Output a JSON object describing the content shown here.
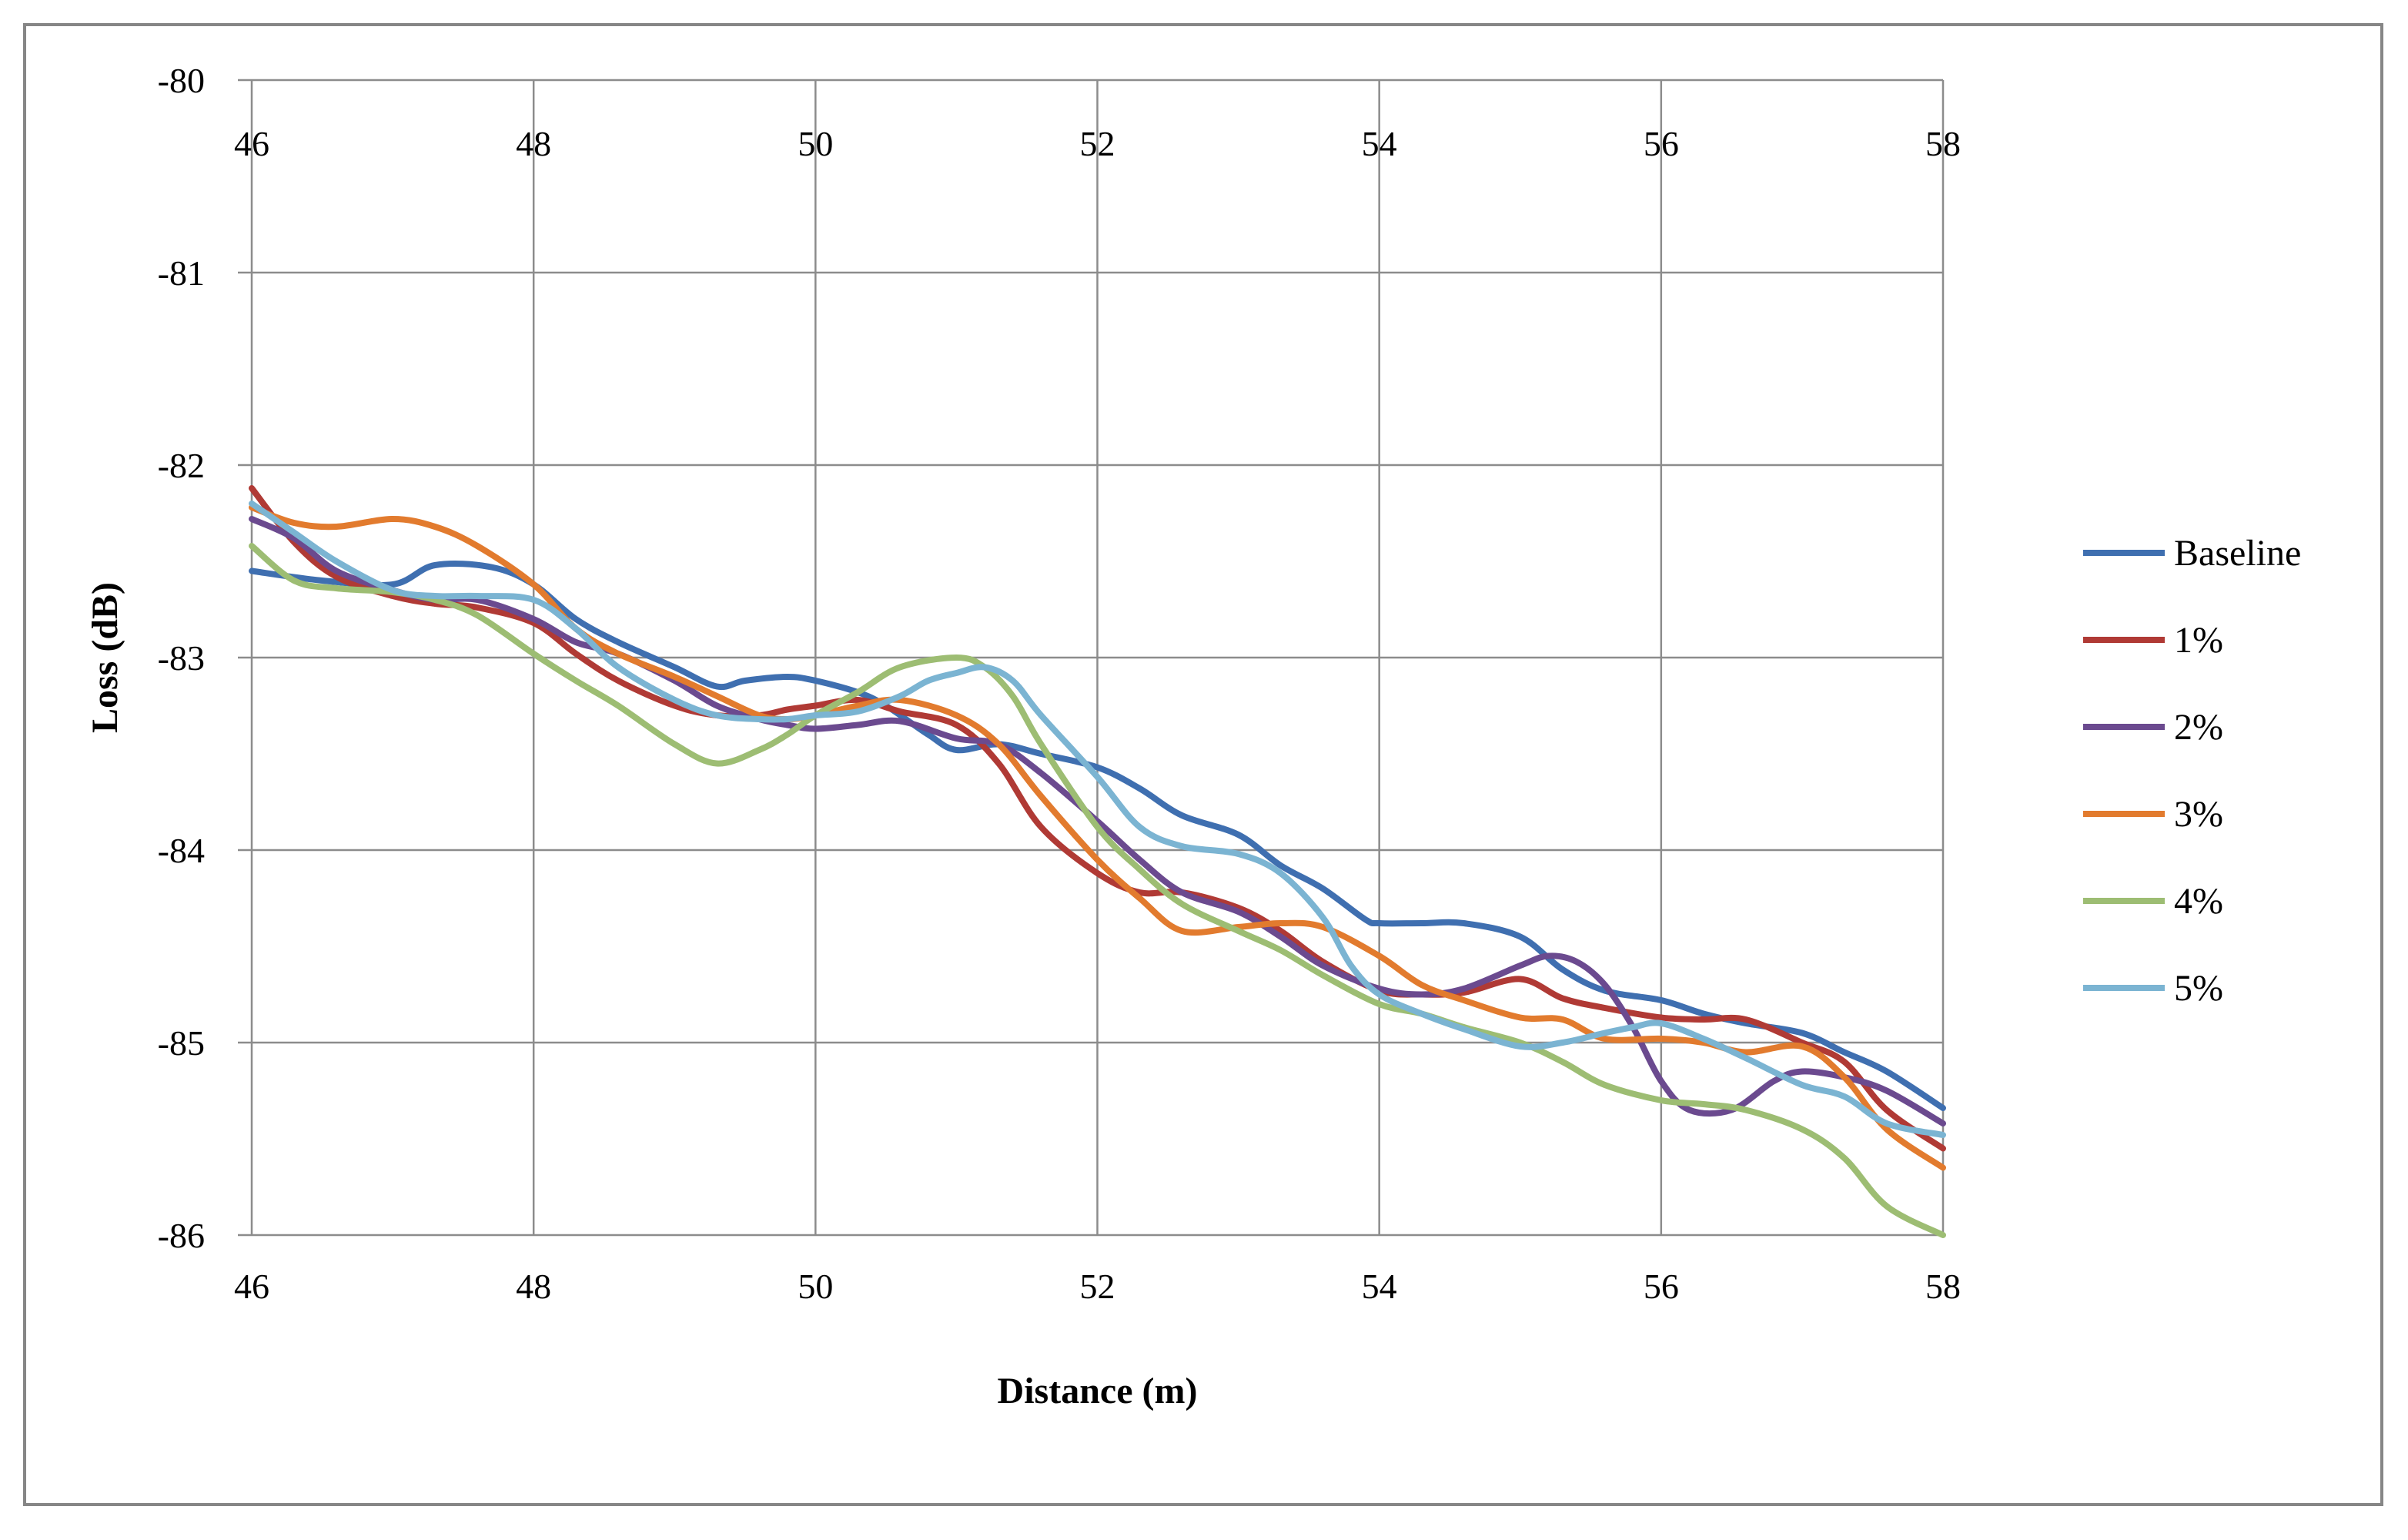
{
  "chart_data": {
    "type": "line",
    "title": "",
    "xlabel": "Distance (m)",
    "ylabel": "Loss (dB)",
    "xlim": [
      46,
      58
    ],
    "ylim": [
      -86,
      -80
    ],
    "xticks": [
      "46",
      "48",
      "50",
      "52",
      "54",
      "56",
      "58"
    ],
    "yticks": [
      "-80",
      "-81",
      "-82",
      "-83",
      "-84",
      "-85",
      "-86"
    ],
    "xtick_values": [
      46,
      48,
      50,
      52,
      54,
      56,
      58
    ],
    "ytick_values": [
      -80,
      -81,
      -82,
      -83,
      -84,
      -85,
      -86
    ],
    "grid": true,
    "legend_position": "right",
    "series": [
      {
        "name": "Baseline",
        "color": "#3F6FB0",
        "x": [
          46,
          46.5,
          47,
          47.3,
          47.7,
          48,
          48.3,
          48.6,
          49,
          49.3,
          49.5,
          49.8,
          50,
          50.3,
          50.5,
          50.8,
          51,
          51.3,
          51.6,
          52,
          52.3,
          52.6,
          53,
          53.3,
          53.6,
          53.9,
          54,
          54.3,
          54.6,
          55,
          55.3,
          55.6,
          56,
          56.3,
          56.6,
          57,
          57.3,
          57.6,
          58
        ],
        "y": [
          -82.55,
          -82.6,
          -82.62,
          -82.52,
          -82.53,
          -82.62,
          -82.8,
          -82.92,
          -83.05,
          -83.15,
          -83.12,
          -83.1,
          -83.12,
          -83.18,
          -83.25,
          -83.4,
          -83.48,
          -83.45,
          -83.5,
          -83.57,
          -83.68,
          -83.82,
          -83.92,
          -84.08,
          -84.2,
          -84.36,
          -84.38,
          -84.38,
          -84.38,
          -84.45,
          -84.62,
          -84.73,
          -84.78,
          -84.85,
          -84.9,
          -84.95,
          -85.05,
          -85.15,
          -85.34
        ]
      },
      {
        "name": "1%",
        "color": "#B03A35",
        "x": [
          46,
          46.3,
          46.6,
          47,
          47.3,
          47.6,
          48,
          48.3,
          48.6,
          49,
          49.3,
          49.6,
          49.8,
          50,
          50.3,
          50.6,
          51,
          51.3,
          51.6,
          52,
          52.3,
          52.6,
          53,
          53.3,
          53.6,
          54,
          54.3,
          54.6,
          55,
          55.3,
          55.6,
          56,
          56.3,
          56.6,
          57,
          57.3,
          57.6,
          58
        ],
        "y": [
          -82.12,
          -82.4,
          -82.58,
          -82.68,
          -82.72,
          -82.74,
          -82.82,
          -82.98,
          -83.12,
          -83.25,
          -83.3,
          -83.3,
          -83.27,
          -83.25,
          -83.22,
          -83.28,
          -83.35,
          -83.55,
          -83.88,
          -84.12,
          -84.22,
          -84.22,
          -84.3,
          -84.42,
          -84.58,
          -84.73,
          -84.75,
          -84.74,
          -84.67,
          -84.77,
          -84.82,
          -84.87,
          -84.88,
          -84.88,
          -85.0,
          -85.1,
          -85.35,
          -85.55
        ]
      },
      {
        "name": "2%",
        "color": "#6B4A8F",
        "x": [
          46,
          46.3,
          46.6,
          47,
          47.3,
          47.6,
          48,
          48.3,
          48.6,
          49,
          49.3,
          49.6,
          49.8,
          50,
          50.3,
          50.6,
          51,
          51.3,
          51.6,
          52,
          52.3,
          52.6,
          53,
          53.3,
          53.6,
          54,
          54.3,
          54.6,
          55,
          55.2,
          55.4,
          55.6,
          55.8,
          56,
          56.2,
          56.5,
          56.8,
          57,
          57.3,
          57.6,
          58
        ],
        "y": [
          -82.28,
          -82.38,
          -82.55,
          -82.65,
          -82.7,
          -82.7,
          -82.8,
          -82.92,
          -82.98,
          -83.12,
          -83.25,
          -83.32,
          -83.35,
          -83.37,
          -83.35,
          -83.33,
          -83.42,
          -83.45,
          -83.6,
          -83.85,
          -84.05,
          -84.22,
          -84.32,
          -84.45,
          -84.6,
          -84.72,
          -84.75,
          -84.72,
          -84.6,
          -84.55,
          -84.58,
          -84.7,
          -84.92,
          -85.2,
          -85.35,
          -85.35,
          -85.2,
          -85.15,
          -85.18,
          -85.25,
          -85.42
        ]
      },
      {
        "name": "3%",
        "color": "#E27B2E",
        "x": [
          46,
          46.3,
          46.6,
          47,
          47.3,
          47.6,
          48,
          48.3,
          48.6,
          49,
          49.3,
          49.6,
          49.8,
          50,
          50.3,
          50.6,
          51,
          51.3,
          51.6,
          52,
          52.3,
          52.6,
          53,
          53.3,
          53.6,
          54,
          54.3,
          54.6,
          55,
          55.3,
          55.6,
          56,
          56.3,
          56.6,
          57,
          57.3,
          57.6,
          58
        ],
        "y": [
          -82.22,
          -82.3,
          -82.32,
          -82.28,
          -82.32,
          -82.42,
          -82.62,
          -82.85,
          -82.98,
          -83.1,
          -83.2,
          -83.3,
          -83.32,
          -83.3,
          -83.25,
          -83.22,
          -83.3,
          -83.45,
          -83.72,
          -84.05,
          -84.25,
          -84.42,
          -84.4,
          -84.38,
          -84.4,
          -84.55,
          -84.7,
          -84.78,
          -84.87,
          -84.88,
          -84.98,
          -84.98,
          -85.0,
          -85.05,
          -85.02,
          -85.18,
          -85.45,
          -85.65
        ]
      },
      {
        "name": "4%",
        "color": "#9DBD73",
        "x": [
          46,
          46.3,
          46.6,
          47,
          47.3,
          47.6,
          48,
          48.3,
          48.6,
          49,
          49.3,
          49.6,
          49.8,
          50,
          50.3,
          50.6,
          51,
          51.2,
          51.4,
          51.6,
          52,
          52.3,
          52.6,
          53,
          53.3,
          53.6,
          54,
          54.3,
          54.6,
          55,
          55.3,
          55.6,
          56,
          56.3,
          56.6,
          57,
          57.3,
          57.6,
          58
        ],
        "y": [
          -82.42,
          -82.6,
          -82.64,
          -82.66,
          -82.7,
          -82.78,
          -82.98,
          -83.12,
          -83.25,
          -83.45,
          -83.55,
          -83.48,
          -83.4,
          -83.3,
          -83.18,
          -83.05,
          -83.0,
          -83.05,
          -83.2,
          -83.45,
          -83.88,
          -84.1,
          -84.28,
          -84.42,
          -84.52,
          -84.65,
          -84.8,
          -84.85,
          -84.92,
          -85.0,
          -85.1,
          -85.22,
          -85.3,
          -85.32,
          -85.35,
          -85.45,
          -85.6,
          -85.85,
          -86.0
        ]
      },
      {
        "name": "5%",
        "color": "#7BB4D2",
        "x": [
          46,
          46.3,
          46.6,
          47,
          47.3,
          47.6,
          48,
          48.3,
          48.6,
          49,
          49.3,
          49.6,
          49.8,
          50,
          50.3,
          50.6,
          50.8,
          51,
          51.2,
          51.4,
          51.6,
          52,
          52.3,
          52.6,
          53,
          53.3,
          53.6,
          53.8,
          54,
          54.3,
          54.6,
          55,
          55.3,
          55.6,
          55.8,
          56,
          56.3,
          56.6,
          57,
          57.3,
          57.6,
          58
        ],
        "y": [
          -82.2,
          -82.35,
          -82.5,
          -82.65,
          -82.68,
          -82.68,
          -82.7,
          -82.85,
          -83.05,
          -83.22,
          -83.3,
          -83.32,
          -83.32,
          -83.3,
          -83.28,
          -83.2,
          -83.12,
          -83.08,
          -83.05,
          -83.12,
          -83.3,
          -83.62,
          -83.88,
          -83.98,
          -84.02,
          -84.12,
          -84.35,
          -84.6,
          -84.75,
          -84.85,
          -84.93,
          -85.02,
          -85.0,
          -84.95,
          -84.92,
          -84.9,
          -84.98,
          -85.08,
          -85.22,
          -85.28,
          -85.42,
          -85.48
        ]
      }
    ]
  }
}
